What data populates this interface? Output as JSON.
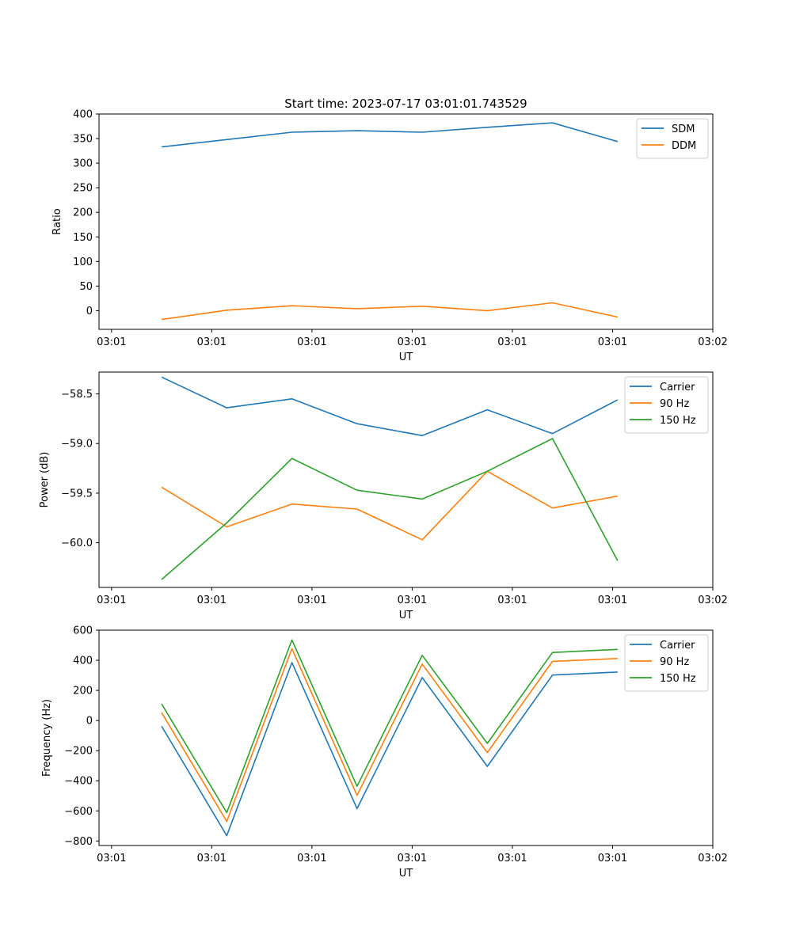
{
  "chart_data": [
    {
      "type": "line",
      "title": "Start time: 2023-07-17 03:01:01.743529",
      "xlabel": "UT",
      "ylabel": "Ratio",
      "x_tick_labels": [
        "03:01",
        "03:01",
        "03:01",
        "03:01",
        "03:01",
        "03:01",
        "03:02"
      ],
      "y_ticks": [
        0,
        50,
        100,
        150,
        200,
        250,
        300,
        350,
        400
      ],
      "y_tick_labels": [
        "0",
        "50",
        "100",
        "150",
        "200",
        "250",
        "300",
        "350",
        "400"
      ],
      "ylim": [
        -38,
        400
      ],
      "xlim": [
        -0.125,
        6.0
      ],
      "x": [
        0.5,
        1.15,
        1.8,
        2.45,
        3.1,
        3.75,
        4.4,
        5.05
      ],
      "legend_position": "upper-right",
      "series": [
        {
          "name": "SDM",
          "color": "#1f77b4",
          "values": [
            333,
            348,
            363,
            366,
            363,
            373,
            382,
            344
          ]
        },
        {
          "name": "DDM",
          "color": "#ff7f0e",
          "values": [
            -18,
            1,
            10,
            4,
            9,
            0,
            16,
            -13
          ]
        }
      ]
    },
    {
      "type": "line",
      "title": "",
      "xlabel": "UT",
      "ylabel": "Power (dB)",
      "x_tick_labels": [
        "03:01",
        "03:01",
        "03:01",
        "03:01",
        "03:01",
        "03:01",
        "03:02"
      ],
      "y_ticks": [
        -60.0,
        -59.5,
        -59.0,
        -58.5
      ],
      "y_tick_labels": [
        "−60.0",
        "−59.5",
        "−59.0",
        "−58.5"
      ],
      "ylim": [
        -60.45,
        -58.28
      ],
      "xlim": [
        -0.125,
        6.0
      ],
      "x": [
        0.5,
        1.15,
        1.8,
        2.45,
        3.1,
        3.75,
        4.4,
        5.05
      ],
      "legend_position": "upper-right",
      "series": [
        {
          "name": "Carrier",
          "color": "#1f77b4",
          "values": [
            -58.33,
            -58.64,
            -58.55,
            -58.8,
            -58.92,
            -58.66,
            -58.9,
            -58.56
          ]
        },
        {
          "name": "90 Hz",
          "color": "#ff7f0e",
          "values": [
            -59.44,
            -59.84,
            -59.61,
            -59.66,
            -59.97,
            -59.28,
            -59.65,
            -59.53
          ]
        },
        {
          "name": "150 Hz",
          "color": "#2ca02c",
          "values": [
            -60.37,
            -59.8,
            -59.15,
            -59.47,
            -59.56,
            -59.28,
            -58.95,
            -60.18
          ]
        }
      ]
    },
    {
      "type": "line",
      "title": "",
      "xlabel": "UT",
      "ylabel": "Frequency (Hz)",
      "x_tick_labels": [
        "03:01",
        "03:01",
        "03:01",
        "03:01",
        "03:01",
        "03:01",
        "03:02"
      ],
      "y_ticks": [
        -800,
        -600,
        -400,
        -200,
        0,
        200,
        400,
        600
      ],
      "y_tick_labels": [
        "−800",
        "−600",
        "−400",
        "−200",
        "0",
        "200",
        "400",
        "600"
      ],
      "ylim": [
        -830,
        600
      ],
      "xlim": [
        -0.125,
        6.0
      ],
      "x": [
        0.5,
        1.15,
        1.8,
        2.45,
        3.1,
        3.75,
        4.4,
        5.05
      ],
      "legend_position": "upper-right",
      "series": [
        {
          "name": "Carrier",
          "color": "#1f77b4",
          "values": [
            -38,
            -765,
            385,
            -585,
            285,
            -305,
            302,
            322
          ]
        },
        {
          "name": "90 Hz",
          "color": "#ff7f0e",
          "values": [
            52,
            -670,
            477,
            -497,
            375,
            -213,
            393,
            412
          ]
        },
        {
          "name": "150 Hz",
          "color": "#2ca02c",
          "values": [
            110,
            -612,
            535,
            -437,
            433,
            -152,
            452,
            472
          ]
        }
      ]
    }
  ]
}
